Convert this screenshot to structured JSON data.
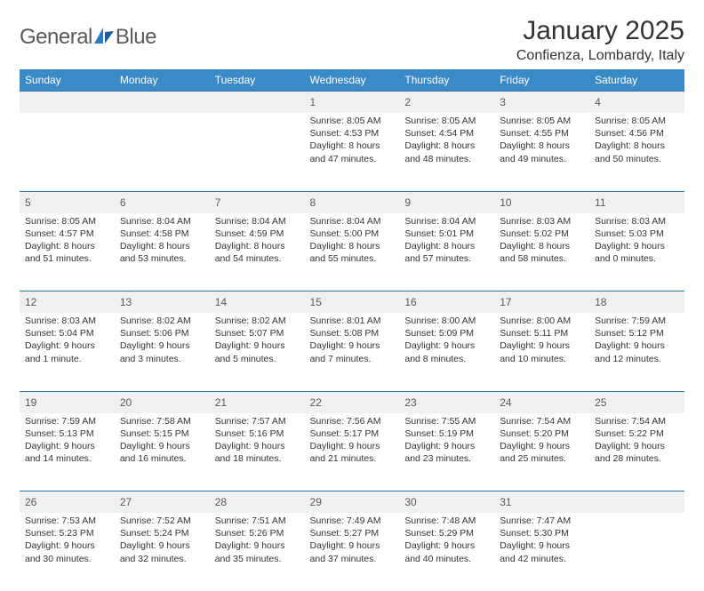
{
  "logo": {
    "text_a": "General",
    "text_b": "Blue"
  },
  "title": "January 2025",
  "location": "Confienza, Lombardy, Italy",
  "colors": {
    "header_bg": "#3a8ac8",
    "header_fg": "#ffffff",
    "row_border": "#2e74b5",
    "daynum_bg": "#eef0f2",
    "text": "#333333",
    "logo_gray": "#5a5a5a",
    "logo_blue": "#2b7bbf"
  },
  "day_headers": [
    "Sunday",
    "Monday",
    "Tuesday",
    "Wednesday",
    "Thursday",
    "Friday",
    "Saturday"
  ],
  "weeks": [
    [
      null,
      null,
      null,
      {
        "n": "1",
        "sr": "Sunrise: 8:05 AM",
        "ss": "Sunset: 4:53 PM",
        "d1": "Daylight: 8 hours",
        "d2": "and 47 minutes."
      },
      {
        "n": "2",
        "sr": "Sunrise: 8:05 AM",
        "ss": "Sunset: 4:54 PM",
        "d1": "Daylight: 8 hours",
        "d2": "and 48 minutes."
      },
      {
        "n": "3",
        "sr": "Sunrise: 8:05 AM",
        "ss": "Sunset: 4:55 PM",
        "d1": "Daylight: 8 hours",
        "d2": "and 49 minutes."
      },
      {
        "n": "4",
        "sr": "Sunrise: 8:05 AM",
        "ss": "Sunset: 4:56 PM",
        "d1": "Daylight: 8 hours",
        "d2": "and 50 minutes."
      }
    ],
    [
      {
        "n": "5",
        "sr": "Sunrise: 8:05 AM",
        "ss": "Sunset: 4:57 PM",
        "d1": "Daylight: 8 hours",
        "d2": "and 51 minutes."
      },
      {
        "n": "6",
        "sr": "Sunrise: 8:04 AM",
        "ss": "Sunset: 4:58 PM",
        "d1": "Daylight: 8 hours",
        "d2": "and 53 minutes."
      },
      {
        "n": "7",
        "sr": "Sunrise: 8:04 AM",
        "ss": "Sunset: 4:59 PM",
        "d1": "Daylight: 8 hours",
        "d2": "and 54 minutes."
      },
      {
        "n": "8",
        "sr": "Sunrise: 8:04 AM",
        "ss": "Sunset: 5:00 PM",
        "d1": "Daylight: 8 hours",
        "d2": "and 55 minutes."
      },
      {
        "n": "9",
        "sr": "Sunrise: 8:04 AM",
        "ss": "Sunset: 5:01 PM",
        "d1": "Daylight: 8 hours",
        "d2": "and 57 minutes."
      },
      {
        "n": "10",
        "sr": "Sunrise: 8:03 AM",
        "ss": "Sunset: 5:02 PM",
        "d1": "Daylight: 8 hours",
        "d2": "and 58 minutes."
      },
      {
        "n": "11",
        "sr": "Sunrise: 8:03 AM",
        "ss": "Sunset: 5:03 PM",
        "d1": "Daylight: 9 hours",
        "d2": "and 0 minutes."
      }
    ],
    [
      {
        "n": "12",
        "sr": "Sunrise: 8:03 AM",
        "ss": "Sunset: 5:04 PM",
        "d1": "Daylight: 9 hours",
        "d2": "and 1 minute."
      },
      {
        "n": "13",
        "sr": "Sunrise: 8:02 AM",
        "ss": "Sunset: 5:06 PM",
        "d1": "Daylight: 9 hours",
        "d2": "and 3 minutes."
      },
      {
        "n": "14",
        "sr": "Sunrise: 8:02 AM",
        "ss": "Sunset: 5:07 PM",
        "d1": "Daylight: 9 hours",
        "d2": "and 5 minutes."
      },
      {
        "n": "15",
        "sr": "Sunrise: 8:01 AM",
        "ss": "Sunset: 5:08 PM",
        "d1": "Daylight: 9 hours",
        "d2": "and 7 minutes."
      },
      {
        "n": "16",
        "sr": "Sunrise: 8:00 AM",
        "ss": "Sunset: 5:09 PM",
        "d1": "Daylight: 9 hours",
        "d2": "and 8 minutes."
      },
      {
        "n": "17",
        "sr": "Sunrise: 8:00 AM",
        "ss": "Sunset: 5:11 PM",
        "d1": "Daylight: 9 hours",
        "d2": "and 10 minutes."
      },
      {
        "n": "18",
        "sr": "Sunrise: 7:59 AM",
        "ss": "Sunset: 5:12 PM",
        "d1": "Daylight: 9 hours",
        "d2": "and 12 minutes."
      }
    ],
    [
      {
        "n": "19",
        "sr": "Sunrise: 7:59 AM",
        "ss": "Sunset: 5:13 PM",
        "d1": "Daylight: 9 hours",
        "d2": "and 14 minutes."
      },
      {
        "n": "20",
        "sr": "Sunrise: 7:58 AM",
        "ss": "Sunset: 5:15 PM",
        "d1": "Daylight: 9 hours",
        "d2": "and 16 minutes."
      },
      {
        "n": "21",
        "sr": "Sunrise: 7:57 AM",
        "ss": "Sunset: 5:16 PM",
        "d1": "Daylight: 9 hours",
        "d2": "and 18 minutes."
      },
      {
        "n": "22",
        "sr": "Sunrise: 7:56 AM",
        "ss": "Sunset: 5:17 PM",
        "d1": "Daylight: 9 hours",
        "d2": "and 21 minutes."
      },
      {
        "n": "23",
        "sr": "Sunrise: 7:55 AM",
        "ss": "Sunset: 5:19 PM",
        "d1": "Daylight: 9 hours",
        "d2": "and 23 minutes."
      },
      {
        "n": "24",
        "sr": "Sunrise: 7:54 AM",
        "ss": "Sunset: 5:20 PM",
        "d1": "Daylight: 9 hours",
        "d2": "and 25 minutes."
      },
      {
        "n": "25",
        "sr": "Sunrise: 7:54 AM",
        "ss": "Sunset: 5:22 PM",
        "d1": "Daylight: 9 hours",
        "d2": "and 28 minutes."
      }
    ],
    [
      {
        "n": "26",
        "sr": "Sunrise: 7:53 AM",
        "ss": "Sunset: 5:23 PM",
        "d1": "Daylight: 9 hours",
        "d2": "and 30 minutes."
      },
      {
        "n": "27",
        "sr": "Sunrise: 7:52 AM",
        "ss": "Sunset: 5:24 PM",
        "d1": "Daylight: 9 hours",
        "d2": "and 32 minutes."
      },
      {
        "n": "28",
        "sr": "Sunrise: 7:51 AM",
        "ss": "Sunset: 5:26 PM",
        "d1": "Daylight: 9 hours",
        "d2": "and 35 minutes."
      },
      {
        "n": "29",
        "sr": "Sunrise: 7:49 AM",
        "ss": "Sunset: 5:27 PM",
        "d1": "Daylight: 9 hours",
        "d2": "and 37 minutes."
      },
      {
        "n": "30",
        "sr": "Sunrise: 7:48 AM",
        "ss": "Sunset: 5:29 PM",
        "d1": "Daylight: 9 hours",
        "d2": "and 40 minutes."
      },
      {
        "n": "31",
        "sr": "Sunrise: 7:47 AM",
        "ss": "Sunset: 5:30 PM",
        "d1": "Daylight: 9 hours",
        "d2": "and 42 minutes."
      },
      null
    ]
  ]
}
